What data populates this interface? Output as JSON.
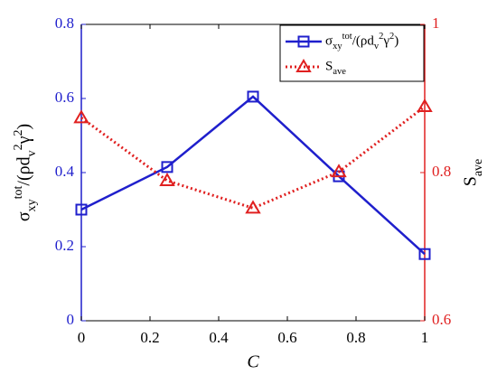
{
  "chart_data": {
    "type": "line",
    "x_label": "C",
    "y_label": "σ_{xy}^{tot}/(ρd_v^2γ^2)",
    "y2_label": "S_{ave}",
    "x": [
      0,
      0.25,
      0.5,
      0.75,
      1
    ],
    "series": [
      {
        "name": "σ_{xy}^{tot}/(ρd_v^2γ^2)",
        "color": "#1f1fcc",
        "marker": "square",
        "linestyle": "solid",
        "values": [
          0.3,
          0.415,
          0.605,
          0.39,
          0.18
        ]
      },
      {
        "name": "S_{ave}",
        "color": "#e02020",
        "marker": "triangle",
        "linestyle": "dotted",
        "axis": "y2",
        "values": [
          0.874,
          0.789,
          0.752,
          0.801,
          0.889
        ]
      }
    ],
    "xlim": [
      0,
      1
    ],
    "xticks": [
      0,
      0.2,
      0.4,
      0.6,
      0.8,
      1
    ],
    "ylim": [
      0,
      0.8
    ],
    "yticks": [
      0,
      0.2,
      0.4,
      0.6,
      0.8
    ],
    "y2lim": [
      0.6,
      1
    ],
    "y2ticks": [
      0.6,
      0.8,
      1
    ],
    "y_color": "#1f1fcc",
    "y2_color": "#e02020",
    "legend": "upper right",
    "grid": false
  }
}
